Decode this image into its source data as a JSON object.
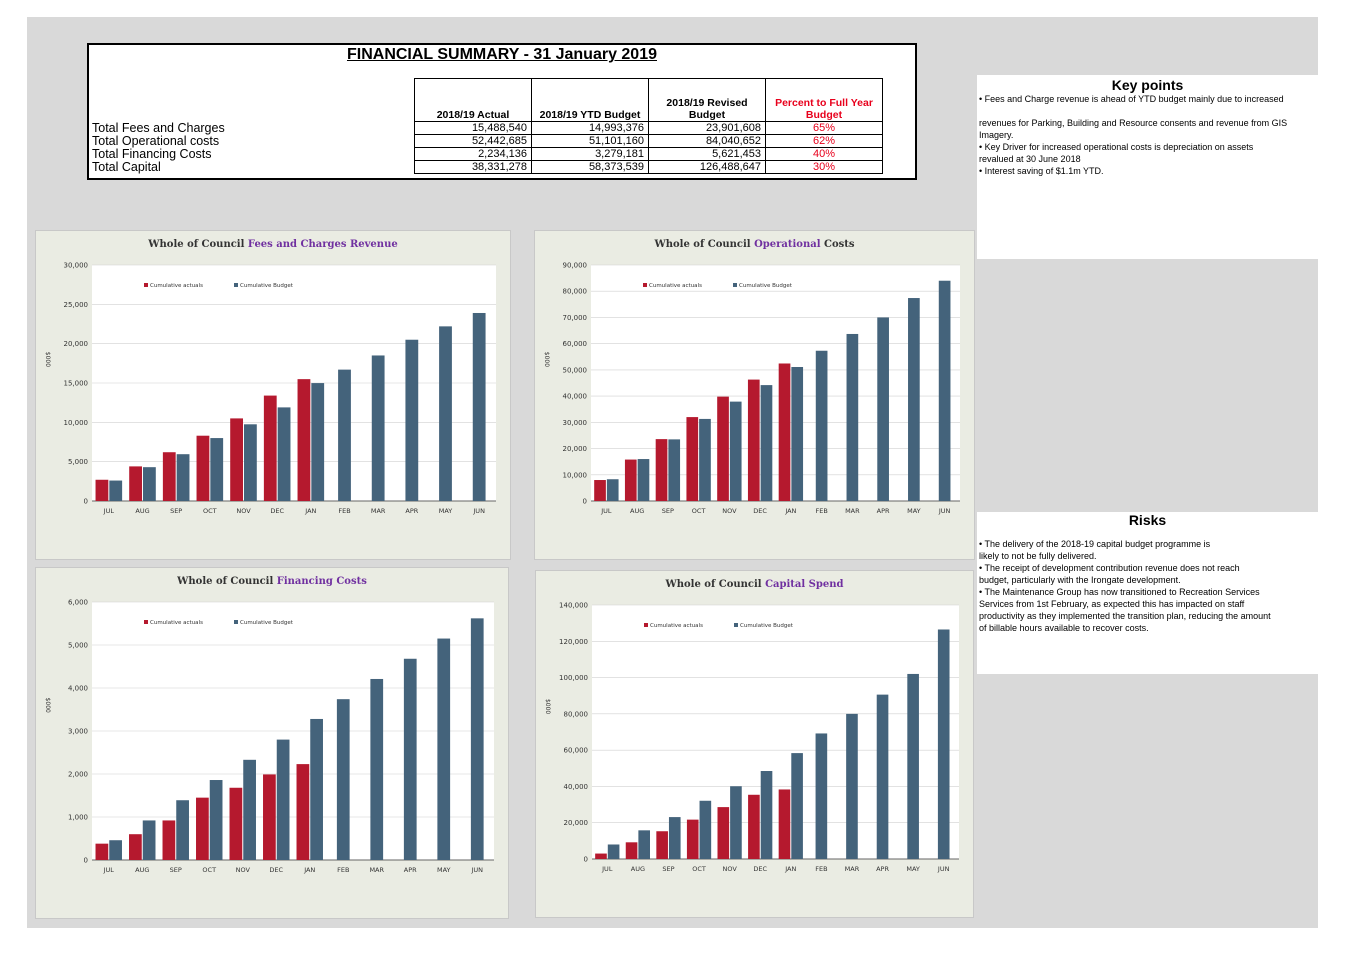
{
  "summary": {
    "title": "FINANCIAL SUMMARY - 31 January 2019",
    "headers": [
      "2018/19 Actual",
      "2018/19 YTD Budget",
      "2018/19 Revised Budget",
      "Percent to Full Year Budget"
    ],
    "rows": [
      {
        "label": "Total Fees and Charges",
        "actual": "15,488,540",
        "ytd": "14,993,376",
        "revised": "23,901,608",
        "pct": "65%"
      },
      {
        "label": "Total Operational costs",
        "actual": "52,442,685",
        "ytd": "51,101,160",
        "revised": "84,040,652",
        "pct": "62%"
      },
      {
        "label": "Total Financing Costs",
        "actual": "2,234,136",
        "ytd": "3,279,181",
        "revised": "5,621,453",
        "pct": "40%"
      },
      {
        "label": "Total Capital",
        "actual": "38,331,278",
        "ytd": "58,373,539",
        "revised": "126,488,647",
        "pct": "30%"
      }
    ]
  },
  "key_points": {
    "title": "Key points",
    "items": [
      "• Fees and Charge revenue is ahead of YTD budget mainly due to increased",
      "",
      "revenues for Parking, Building and Resource consents and revenue from GIS Imagery.",
      "• Key Driver for increased operational costs is depreciation on assets",
      "revalued at 30 June 2018",
      "• Interest saving of $1.1m YTD."
    ]
  },
  "risks": {
    "title": "Risks",
    "items": [
      "• The delivery of the 2018-19 capital budget programme is",
      "likely to not be fully delivered.",
      "• The receipt of development contribution revenue does not reach",
      "budget, particularly with the Irongate development.",
      "• The Maintenance Group has now transitioned to Recreation Services",
      "Services from 1st February, as expected this has impacted on staff",
      "productivity as they implemented the transition plan, reducing the amount",
      "of billable hours available to recover costs."
    ]
  },
  "colors": {
    "actual": "#b5192e",
    "budget": "#44637b",
    "title_accent": "#7030a0"
  },
  "chart_data": [
    {
      "type": "bar",
      "title_prefix": "Whole of Council ",
      "title_accent": "Fees and Charges Revenue",
      "title_suffix": "",
      "ylabel": "$000",
      "categories": [
        "JUL",
        "AUG",
        "SEP",
        "OCT",
        "NOV",
        "DEC",
        "JAN",
        "FEB",
        "MAR",
        "APR",
        "MAY",
        "JUN"
      ],
      "ylim": [
        0,
        30000
      ],
      "yticks": [
        "0",
        "5,000",
        "10,000",
        "15,000",
        "20,000",
        "25,000",
        "30,000"
      ],
      "series": [
        {
          "name": "Cumulative actuals",
          "values": [
            2700,
            4400,
            6200,
            8300,
            10500,
            13400,
            15490,
            null,
            null,
            null,
            null,
            null
          ]
        },
        {
          "name": "Cumulative Budget",
          "values": [
            2600,
            4300,
            5950,
            8000,
            9750,
            11900,
            14990,
            16700,
            18500,
            20500,
            22200,
            23900
          ]
        }
      ],
      "legend": "top-left"
    },
    {
      "type": "bar",
      "title_prefix": "Whole of Council ",
      "title_accent": "Operational",
      "title_suffix": " Costs",
      "ylabel": "$000",
      "categories": [
        "JUL",
        "AUG",
        "SEP",
        "OCT",
        "NOV",
        "DEC",
        "JAN",
        "FEB",
        "MAR",
        "APR",
        "MAY",
        "JUN"
      ],
      "ylim": [
        0,
        90000
      ],
      "yticks": [
        "0",
        "10,000",
        "20,000",
        "30,000",
        "40,000",
        "50,000",
        "60,000",
        "70,000",
        "80,000",
        "90,000"
      ],
      "series": [
        {
          "name": "Cumulative actuals",
          "values": [
            8000,
            15800,
            23600,
            32000,
            39800,
            46300,
            52440,
            null,
            null,
            null,
            null,
            null
          ]
        },
        {
          "name": "Cumulative Budget",
          "values": [
            8300,
            16000,
            23500,
            31300,
            37900,
            44200,
            51100,
            57300,
            63700,
            70000,
            77400,
            84000
          ]
        }
      ],
      "legend": "top-left"
    },
    {
      "type": "bar",
      "title_prefix": "Whole of Council ",
      "title_accent": "Financing Costs",
      "title_suffix": "",
      "ylabel": "$000",
      "categories": [
        "JUL",
        "AUG",
        "SEP",
        "OCT",
        "NOV",
        "DEC",
        "JAN",
        "FEB",
        "MAR",
        "APR",
        "MAY",
        "JUN"
      ],
      "ylim": [
        0,
        6000
      ],
      "yticks": [
        "0",
        "1,000",
        "2,000",
        "3,000",
        "4,000",
        "5,000",
        "6,000"
      ],
      "series": [
        {
          "name": "Cumulative actuals",
          "values": [
            380,
            600,
            920,
            1450,
            1680,
            1990,
            2230,
            null,
            null,
            null,
            null,
            null
          ]
        },
        {
          "name": "Cumulative Budget",
          "values": [
            460,
            920,
            1390,
            1860,
            2330,
            2800,
            3280,
            3740,
            4210,
            4680,
            5150,
            5620
          ]
        }
      ],
      "legend": "top-left"
    },
    {
      "type": "bar",
      "title_prefix": "Whole of Council ",
      "title_accent": "Capital Spend",
      "title_suffix": "",
      "ylabel": "$000",
      "categories": [
        "JUL",
        "AUG",
        "SEP",
        "OCT",
        "NOV",
        "DEC",
        "JAN",
        "FEB",
        "MAR",
        "APR",
        "MAY",
        "JUN"
      ],
      "ylim": [
        0,
        140000
      ],
      "yticks": [
        "0",
        "20,000",
        "40,000",
        "60,000",
        "80,000",
        "100,000",
        "120,000",
        "140,000"
      ],
      "series": [
        {
          "name": "Cumulative actuals",
          "values": [
            3000,
            9200,
            15300,
            21700,
            28600,
            35400,
            38330,
            null,
            null,
            null,
            null,
            null
          ]
        },
        {
          "name": "Cumulative Budget",
          "values": [
            8000,
            15800,
            23100,
            32100,
            40100,
            48500,
            58370,
            69200,
            80000,
            90600,
            102000,
            126500
          ]
        }
      ],
      "legend": "top-left"
    }
  ]
}
